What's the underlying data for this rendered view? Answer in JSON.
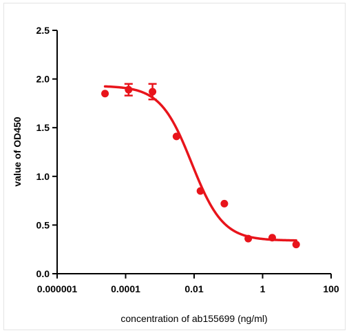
{
  "chart_data": {
    "type": "scatter",
    "title": "",
    "xlabel": "concentration of ab155699 (ng/ml)",
    "ylabel": "value of OD450",
    "x_scale": "log",
    "xlim": [
      1e-06,
      100
    ],
    "ylim": [
      0,
      2.5
    ],
    "x_ticks": [
      {
        "value": 1e-06,
        "label": "0.000001"
      },
      {
        "value": 0.0001,
        "label": "0.0001"
      },
      {
        "value": 0.01,
        "label": "0.01"
      },
      {
        "value": 1,
        "label": "1"
      },
      {
        "value": 100,
        "label": "100"
      }
    ],
    "y_ticks": [
      {
        "value": 0.0,
        "label": "0.0"
      },
      {
        "value": 0.5,
        "label": "0.5"
      },
      {
        "value": 1.0,
        "label": "1.0"
      },
      {
        "value": 1.5,
        "label": "1.5"
      },
      {
        "value": 2.0,
        "label": "2.0"
      },
      {
        "value": 2.5,
        "label": "2.5"
      }
    ],
    "grid": false,
    "legend": "none",
    "color": "#e8141b",
    "series": [
      {
        "name": "",
        "points": [
          {
            "x": 2.5e-05,
            "y": 1.85,
            "err": 0
          },
          {
            "x": 0.000122,
            "y": 1.89,
            "err": 0.06
          },
          {
            "x": 0.00061,
            "y": 1.87,
            "err": 0.08
          },
          {
            "x": 0.00305,
            "y": 1.41,
            "err": 0
          },
          {
            "x": 0.0153,
            "y": 0.85,
            "err": 0
          },
          {
            "x": 0.0763,
            "y": 0.72,
            "err": 0
          },
          {
            "x": 0.381,
            "y": 0.36,
            "err": 0
          },
          {
            "x": 1.91,
            "y": 0.37,
            "err": 0
          },
          {
            "x": 9.54,
            "y": 0.3,
            "err": 0
          }
        ],
        "fit": {
          "model": "4PL",
          "top": 1.93,
          "bottom": 0.34,
          "ec50": 0.0085,
          "hill": 0.95,
          "x_range": [
            2.5e-05,
            9.54
          ]
        }
      }
    ]
  }
}
